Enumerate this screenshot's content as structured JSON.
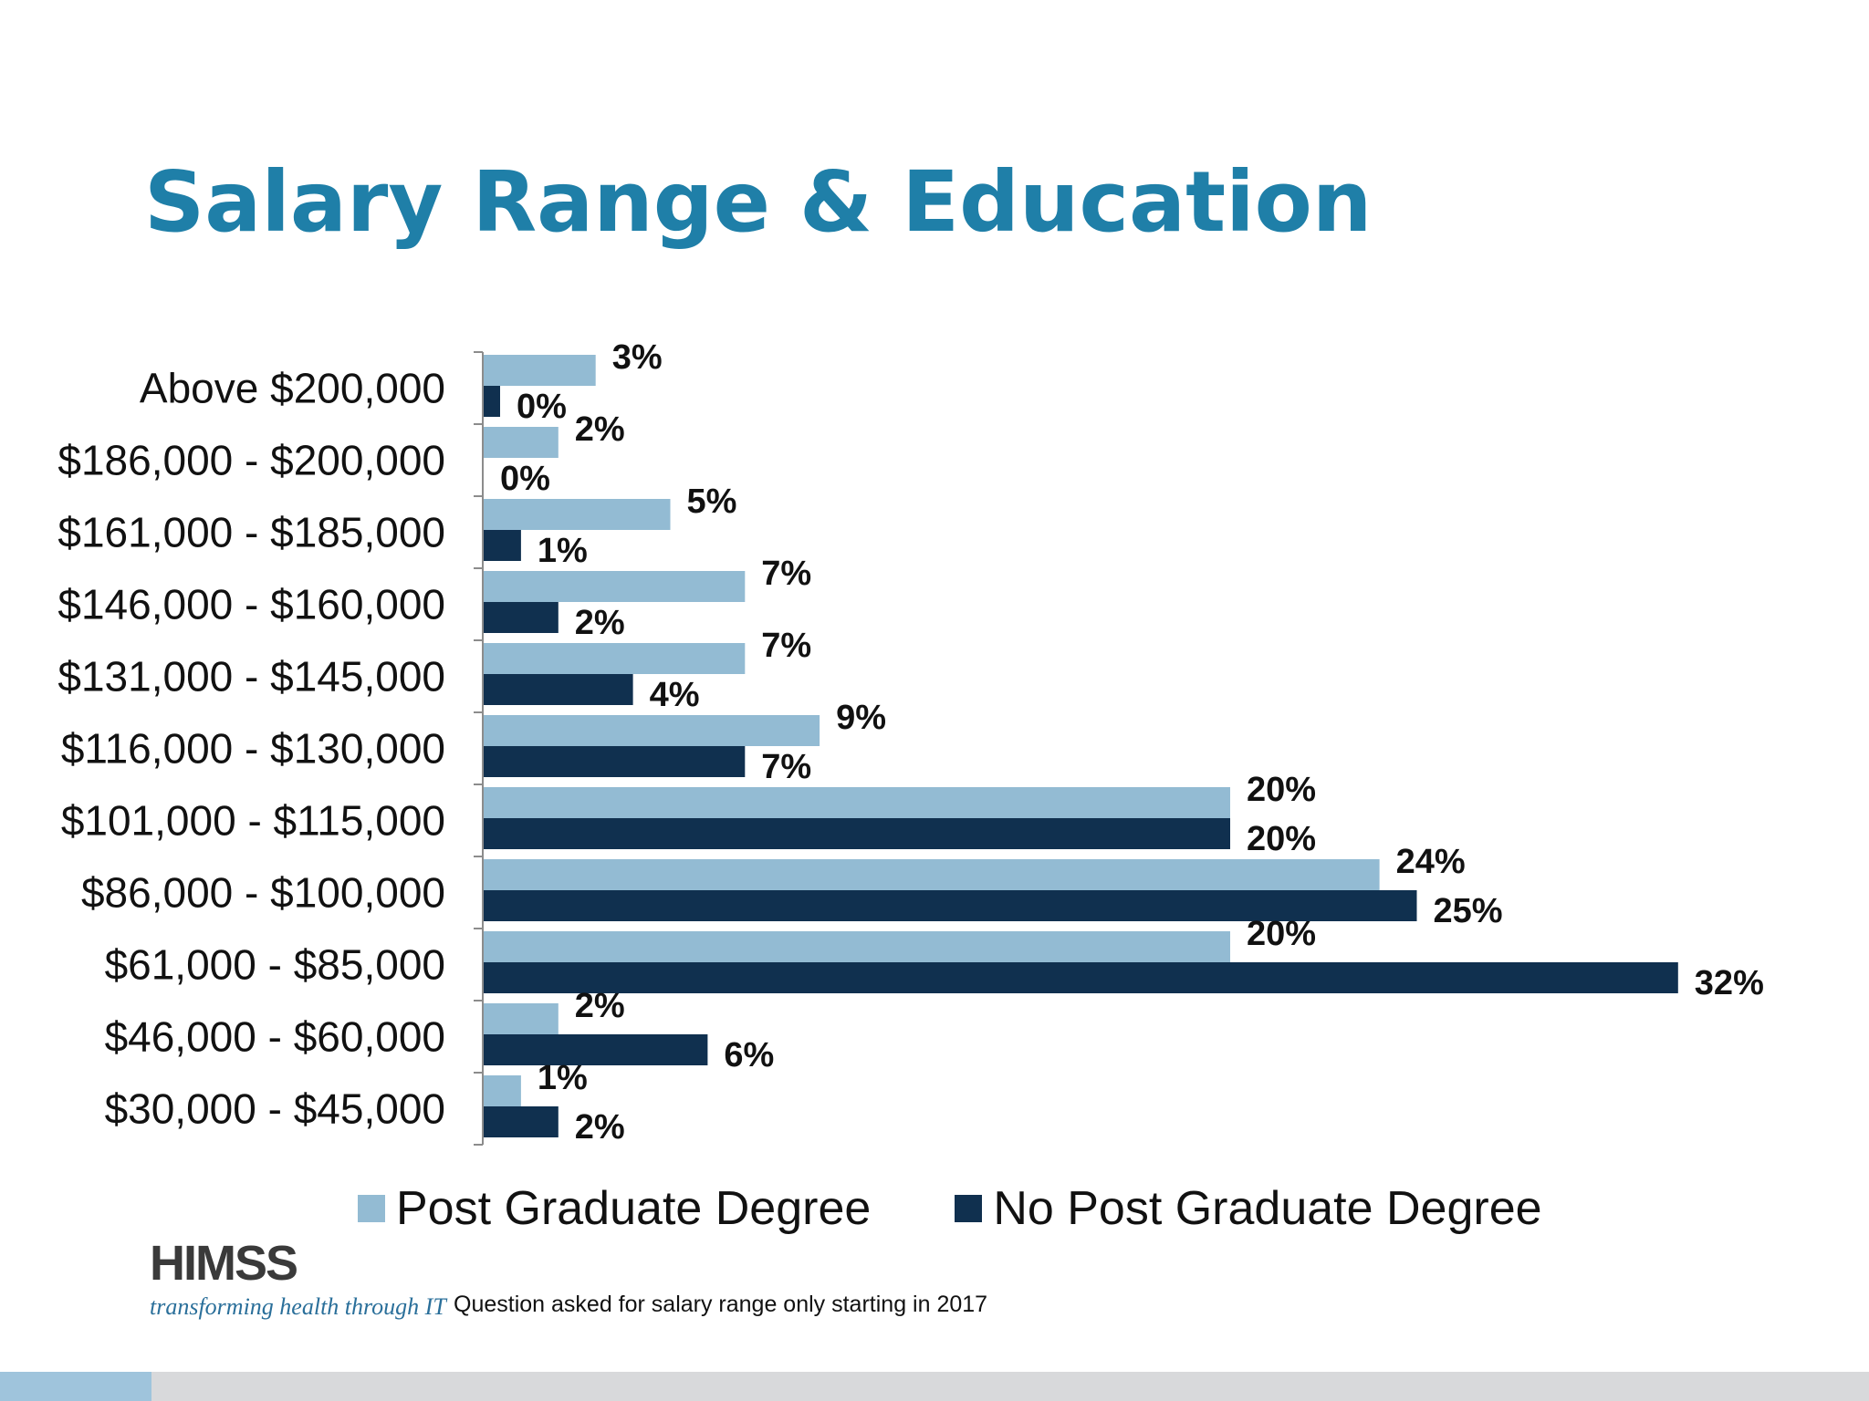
{
  "slide": {
    "title": "Salary Range & Education",
    "footnote": "Question asked for salary range only starting in 2017",
    "logo_text": "HIMSS",
    "logo_tagline": "transforming health through IT"
  },
  "colors": {
    "title": "#1f7fa8",
    "post_graduate": "#93bbd3",
    "no_post_graduate": "#10304f"
  },
  "chart_data": {
    "type": "bar",
    "orientation": "horizontal",
    "title": "",
    "xlabel": "",
    "ylabel": "",
    "xlim": [
      0,
      32
    ],
    "grid": false,
    "legend_position": "bottom",
    "value_suffix": "%",
    "categories": [
      "Above $200,000",
      "$186,000 - $200,000",
      "$161,000 - $185,000",
      "$146,000 - $160,000",
      "$131,000 - $145,000",
      "$116,000 - $130,000",
      "$101,000 - $115,000",
      "$86,000 - $100,000",
      "$61,000 - $85,000",
      "$46,000 - $60,000",
      "$30,000 - $45,000"
    ],
    "series": [
      {
        "name": "Post Graduate Degree",
        "color": "#93bbd3",
        "values": [
          3,
          2,
          5,
          7,
          7,
          9,
          20,
          24,
          20,
          2,
          1
        ]
      },
      {
        "name": "No Post Graduate Degree",
        "color": "#10304f",
        "values": [
          0,
          0,
          1,
          2,
          4,
          7,
          20,
          25,
          32,
          6,
          2
        ]
      }
    ]
  }
}
